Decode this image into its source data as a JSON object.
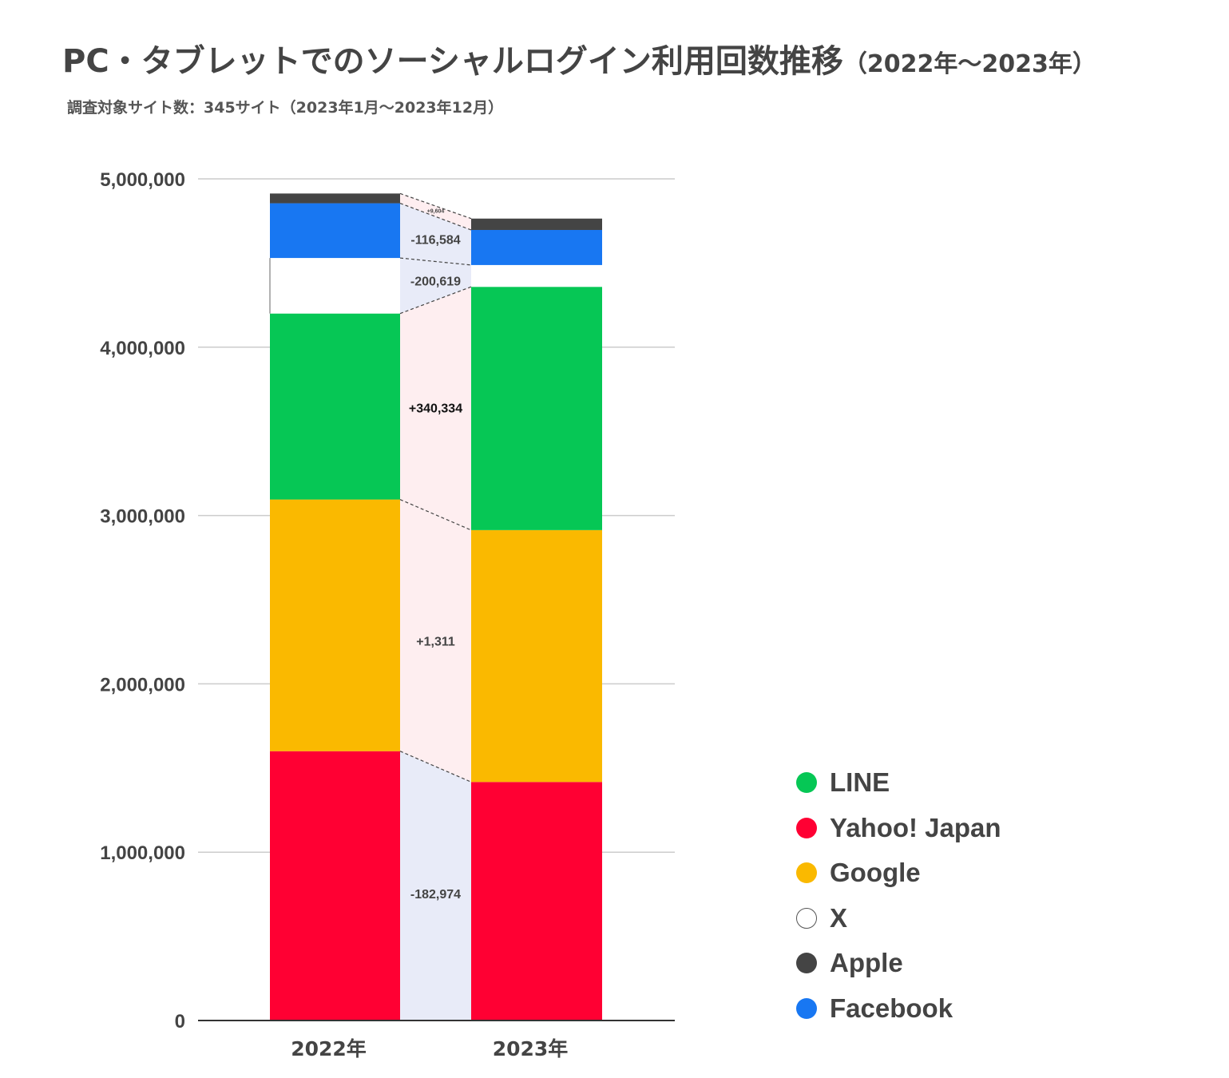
{
  "chart_data": {
    "type": "bar",
    "title": "PC・タブレットでのソーシャルログイン利用回数推移",
    "title_period": "（2022年〜2023年）",
    "subtitle": "調査対象サイト数：345サイト（2023年1月〜2023年12月）",
    "categories": [
      "2022年",
      "2023年"
    ],
    "ylim": [
      0,
      5000000
    ],
    "yticks": [
      "0",
      "1,000,000",
      "2,000,000",
      "3,000,000",
      "4,000,000",
      "5,000,000"
    ],
    "ytick_values": [
      0,
      1000000,
      2000000,
      3000000,
      4000000,
      5000000
    ],
    "series": [
      {
        "name": "Yahoo! Japan",
        "color": "#ff0033",
        "values": [
          1600000,
          1417026
        ],
        "change": "-182,974",
        "change_color": "#e8ebf8"
      },
      {
        "name": "Google",
        "color": "#fab900",
        "values": [
          1495000,
          1496311
        ],
        "change": "+1,311",
        "change_color": "#feeef0"
      },
      {
        "name": "LINE",
        "color": "#06c755",
        "values": [
          1105000,
          1445334
        ],
        "change": "+340,334",
        "change_color": "#feeef0"
      },
      {
        "name": "X",
        "color": "#ffffff",
        "values": [
          330000,
          129381
        ],
        "change": "-200,619",
        "change_color": "#e8ebf8"
      },
      {
        "name": "Facebook",
        "color": "#1877f2",
        "values": [
          325000,
          208416
        ],
        "change": "-116,584",
        "change_color": "#e8ebf8"
      },
      {
        "name": "Apple",
        "color": "#444444",
        "values": [
          58000,
          67604
        ],
        "change": "+9,604",
        "change_color": "#feeef0"
      }
    ],
    "legend": [
      {
        "name": "LINE",
        "color": "#06c755"
      },
      {
        "name": "Yahoo! Japan",
        "color": "#ff0033"
      },
      {
        "name": "Google",
        "color": "#fab900"
      },
      {
        "name": "X",
        "color": "#ffffff"
      },
      {
        "name": "Apple",
        "color": "#444444"
      },
      {
        "name": "Facebook",
        "color": "#1877f2"
      }
    ],
    "legend_position": "bottom-right"
  }
}
